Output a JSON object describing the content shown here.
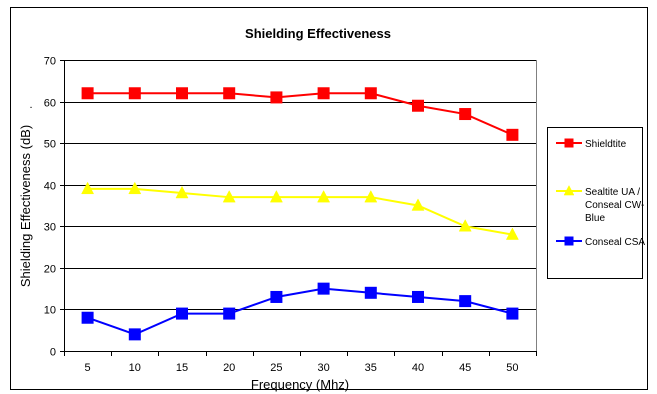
{
  "chart_data": {
    "type": "line",
    "title": "Shielding Effectiveness",
    "xlabel": "Frequency (Mhz)",
    "ylabel": "Shielding Effectiveness (dB)",
    "stray_mark": ".",
    "x": [
      5,
      10,
      15,
      20,
      25,
      30,
      35,
      40,
      45,
      50
    ],
    "ylim": [
      0,
      70
    ],
    "yticks": [
      0,
      10,
      20,
      30,
      40,
      50,
      60,
      70
    ],
    "grid": "horizontal",
    "legend_position": "right",
    "series": [
      {
        "name": "Shieldtite",
        "legend_lines": [
          "Shieldtite"
        ],
        "color": "#ff0000",
        "marker": "square",
        "values": [
          62,
          62,
          62,
          62,
          61,
          62,
          62,
          59,
          57,
          52
        ]
      },
      {
        "name": "Sealtite UA / Conseal CW-Blue",
        "legend_lines": [
          "Sealtite UA /",
          "Conseal CW-",
          "Blue"
        ],
        "color": "#ffff00",
        "marker": "triangle",
        "values": [
          39,
          39,
          38,
          37,
          37,
          37,
          37,
          35,
          30,
          28
        ]
      },
      {
        "name": "Conseal CSA",
        "legend_lines": [
          "Conseal CSA"
        ],
        "color": "#0000ff",
        "marker": "square",
        "values": [
          8,
          4,
          9,
          9,
          13,
          15,
          14,
          13,
          12,
          9
        ]
      }
    ]
  }
}
